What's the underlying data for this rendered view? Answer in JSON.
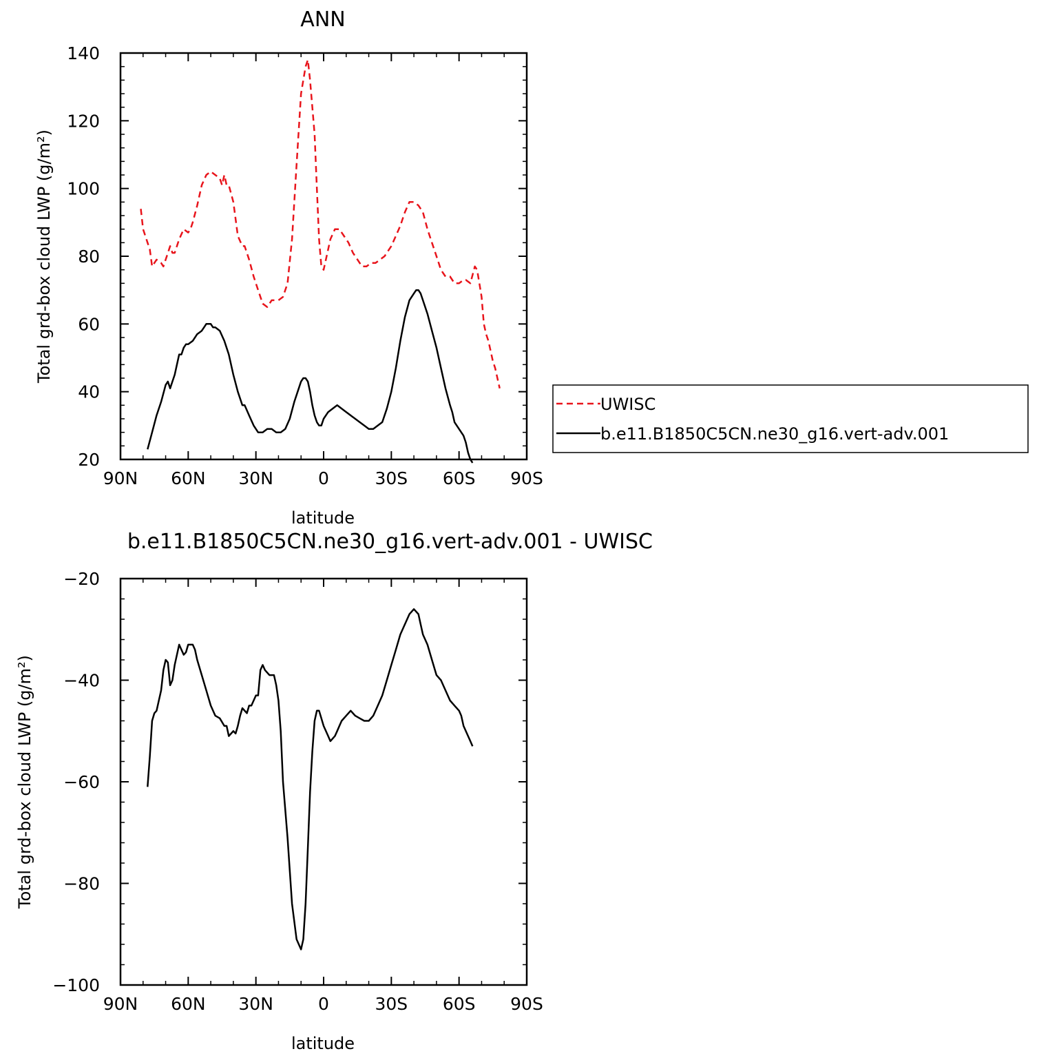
{
  "chart_data": [
    {
      "type": "line",
      "title": "ANN",
      "xlabel": "latitude",
      "ylabel": "Total grd-box cloud LWP (g/m²)",
      "xlim": [
        -90,
        90
      ],
      "ylim": [
        20,
        140
      ],
      "xticks": [
        -90,
        -60,
        -30,
        0,
        30,
        60,
        90
      ],
      "xtick_labels": [
        "90N",
        "60N",
        "30N",
        "0",
        "30S",
        "60S",
        "90S"
      ],
      "yticks": [
        20,
        40,
        60,
        80,
        100,
        120,
        140
      ],
      "ytick_labels": [
        "20",
        "40",
        "60",
        "80",
        "100",
        "120",
        "140"
      ],
      "grid": false,
      "legend": "right",
      "series": [
        {
          "name": "UWISC",
          "color": "#e8141b",
          "dash": "dashed",
          "x": [
            -81,
            -80,
            -78,
            -77,
            -76,
            -75,
            -74,
            -72,
            -71,
            -70,
            -68,
            -67,
            -66,
            -64,
            -62,
            -60,
            -59,
            -58,
            -56,
            -54,
            -52,
            -50,
            -48,
            -46,
            -45,
            -44,
            -43,
            -42,
            -40,
            -38,
            -36,
            -35,
            -33,
            -31,
            -29,
            -27,
            -25,
            -23,
            -21,
            -20,
            -18,
            -16,
            -14,
            -12,
            -10,
            -8,
            -7,
            -6,
            -4,
            -3,
            -2,
            -1,
            0,
            1,
            3,
            5,
            7,
            9,
            11,
            13,
            15,
            17,
            19,
            21,
            23,
            25,
            27,
            30,
            32,
            34,
            36,
            38,
            40,
            42,
            44,
            46,
            48,
            50,
            52,
            54,
            56,
            58,
            60,
            62,
            63,
            65,
            67,
            68,
            69,
            70,
            71,
            72,
            73,
            74,
            75,
            76,
            77,
            78
          ],
          "y": [
            94,
            88,
            84,
            82,
            77,
            78,
            79,
            78,
            77,
            79,
            83,
            81,
            81,
            85,
            88,
            87,
            88,
            90,
            95,
            101,
            104,
            105,
            104,
            103,
            101,
            104,
            101,
            101,
            96,
            86,
            83,
            83,
            79,
            74,
            70,
            66,
            65,
            67,
            67,
            67,
            68,
            72,
            85,
            107,
            128,
            136,
            138,
            132,
            116,
            100,
            85,
            77,
            76,
            79,
            85,
            88,
            88,
            86,
            84,
            81,
            79,
            77,
            77,
            78,
            78,
            79,
            80,
            83,
            86,
            89,
            93,
            96,
            96,
            95,
            93,
            88,
            84,
            80,
            76,
            74,
            74,
            72,
            72,
            73,
            73,
            72,
            77,
            76,
            72,
            68,
            60,
            57,
            55,
            52,
            49,
            47,
            44,
            41
          ]
        },
        {
          "name": "b.e11.B1850C5CN.ne30_g16.vert-adv.001",
          "color": "#000000",
          "dash": "solid",
          "x": [
            -78,
            -76,
            -74,
            -72,
            -70,
            -69,
            -68,
            -67,
            -66,
            -64,
            -63,
            -62,
            -61,
            -60,
            -58,
            -56,
            -54,
            -53,
            -52,
            -51,
            -50,
            -49,
            -48,
            -46,
            -44,
            -42,
            -40,
            -38,
            -36,
            -35,
            -33,
            -31,
            -29,
            -28,
            -27,
            -25,
            -23,
            -21,
            -19,
            -17,
            -15,
            -13,
            -11,
            -10,
            -9,
            -8,
            -7,
            -6,
            -5,
            -4,
            -3,
            -2,
            -1,
            0,
            1,
            2,
            4,
            6,
            8,
            10,
            12,
            14,
            16,
            18,
            20,
            22,
            24,
            26,
            28,
            30,
            32,
            34,
            36,
            38,
            40,
            41,
            42,
            43,
            44,
            46,
            48,
            50,
            52,
            54,
            56,
            57,
            58,
            60,
            62,
            63,
            64,
            65,
            66
          ],
          "y": [
            23,
            28,
            33,
            37,
            42,
            43,
            41,
            43,
            45,
            51,
            51,
            53,
            54,
            54,
            55,
            57,
            58,
            59,
            60,
            60,
            60,
            59,
            59,
            58,
            55,
            51,
            45,
            40,
            36,
            36,
            33,
            30,
            28,
            28,
            28,
            29,
            29,
            28,
            28,
            29,
            32,
            37,
            41,
            43,
            44,
            44,
            43,
            40,
            36,
            33,
            31,
            30,
            30,
            32,
            33,
            34,
            35,
            36,
            35,
            34,
            33,
            32,
            31,
            30,
            29,
            29,
            30,
            31,
            35,
            40,
            47,
            55,
            62,
            67,
            69,
            70,
            70,
            69,
            67,
            63,
            58,
            53,
            47,
            41,
            36,
            34,
            31,
            29,
            27,
            25,
            22,
            20,
            19
          ]
        }
      ]
    },
    {
      "type": "line",
      "title": "b.e11.B1850C5CN.ne30_g16.vert-adv.001 - UWISC",
      "xlabel": "latitude",
      "ylabel": "Total grd-box cloud LWP (g/m²)",
      "xlim": [
        -90,
        90
      ],
      "ylim": [
        -100,
        -20
      ],
      "xticks": [
        -90,
        -60,
        -30,
        0,
        30,
        60,
        90
      ],
      "xtick_labels": [
        "90N",
        "60N",
        "30N",
        "0",
        "30S",
        "60S",
        "90S"
      ],
      "yticks": [
        -100,
        -80,
        -60,
        -40,
        -20
      ],
      "ytick_labels": [
        "−100",
        "−80",
        "−60",
        "−40",
        "−20"
      ],
      "grid": false,
      "series": [
        {
          "color": "#000000",
          "dash": "solid",
          "x": [
            -78,
            -77,
            -76,
            -75,
            -74,
            -73,
            -72,
            -71,
            -70,
            -69,
            -68,
            -67,
            -66,
            -64,
            -63,
            -62,
            -61,
            -60,
            -58,
            -57,
            -56,
            -54,
            -52,
            -50,
            -48,
            -46,
            -44,
            -43,
            -42,
            -40,
            -39,
            -38,
            -37,
            -36,
            -34,
            -33,
            -32,
            -31,
            -30,
            -29,
            -28,
            -27,
            -26,
            -24,
            -23,
            -22,
            -21,
            -20,
            -19,
            -18,
            -16,
            -14,
            -12,
            -10,
            -9,
            -8,
            -7,
            -6,
            -5,
            -4,
            -3,
            -2,
            -1,
            0,
            1,
            2,
            3,
            4,
            5,
            6,
            7,
            8,
            10,
            12,
            14,
            16,
            18,
            20,
            22,
            24,
            26,
            28,
            30,
            32,
            34,
            36,
            38,
            40,
            42,
            43,
            44,
            46,
            48,
            50,
            52,
            54,
            56,
            58,
            60,
            61,
            62,
            63,
            64,
            65,
            66
          ],
          "y": [
            -61,
            -55,
            -48,
            -46.5,
            -46,
            -44,
            -42,
            -38,
            -36,
            -36.5,
            -41,
            -40,
            -37,
            -33,
            -34,
            -35,
            -34.5,
            -33,
            -33,
            -34,
            -36,
            -39,
            -42,
            -45,
            -47,
            -47.5,
            -49,
            -49,
            -51,
            -50,
            -50.5,
            -49,
            -47,
            -45.5,
            -46.5,
            -45,
            -45,
            -44,
            -43,
            -43,
            -38,
            -37,
            -38,
            -39,
            -39,
            -39,
            -41,
            -44,
            -50,
            -60,
            -71,
            -84,
            -91,
            -93,
            -91,
            -84,
            -73,
            -62,
            -54,
            -48,
            -46,
            -46,
            -47.5,
            -49,
            -50,
            -51,
            -52,
            -51.5,
            -51,
            -50,
            -49,
            -48,
            -47,
            -46,
            -47,
            -47.5,
            -48,
            -48,
            -47,
            -45,
            -43,
            -40,
            -37,
            -34,
            -31,
            -29,
            -27,
            -26,
            -27,
            -29,
            -31,
            -33,
            -36,
            -39,
            -40,
            -42,
            -44,
            -45,
            -46,
            -47,
            -49,
            -50,
            -51,
            -52,
            -53
          ]
        }
      ]
    }
  ]
}
